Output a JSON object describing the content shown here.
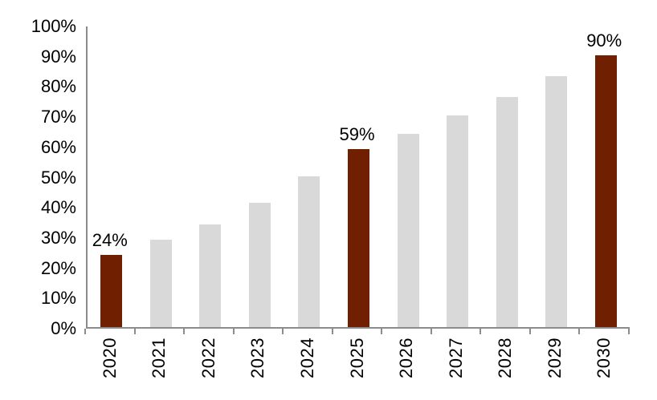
{
  "chart_data": {
    "type": "bar",
    "title": "",
    "xlabel": "",
    "ylabel": "",
    "categories": [
      "2020",
      "2021",
      "2022",
      "2023",
      "2024",
      "2025",
      "2026",
      "2027",
      "2028",
      "2029",
      "2030"
    ],
    "values": [
      24,
      29,
      34,
      41,
      50,
      59,
      64,
      70,
      76,
      83,
      90
    ],
    "highlighted_indices": [
      0,
      5,
      10
    ],
    "data_labels": [
      {
        "index": 0,
        "text": "24%"
      },
      {
        "index": 5,
        "text": "59%"
      },
      {
        "index": 10,
        "text": "90%"
      }
    ],
    "y_ticks": [
      "0%",
      "10%",
      "20%",
      "30%",
      "40%",
      "50%",
      "60%",
      "70%",
      "80%",
      "90%",
      "100%"
    ],
    "ylim": [
      0,
      100
    ],
    "grid": "off",
    "legend": "none",
    "colors": {
      "highlight_bar": "#702000",
      "default_bar": "#D9D9D9",
      "axis": "#8C8C8C",
      "text": "#000000",
      "background": "#FFFFFF"
    }
  }
}
